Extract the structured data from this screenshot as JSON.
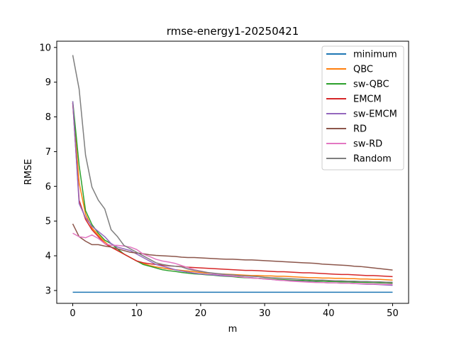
{
  "chart_data": {
    "type": "line",
    "title": "rmse-energy1-20250421",
    "xlabel": "m",
    "ylabel": "RMSE",
    "xlim": [
      -2.5,
      52.5
    ],
    "ylim": [
      2.63,
      10.18
    ],
    "xticks": [
      0,
      10,
      20,
      30,
      40,
      50
    ],
    "yticks": [
      3,
      4,
      5,
      6,
      7,
      8,
      9,
      10
    ],
    "grid": false,
    "legend_position": "top-right",
    "x": [
      0,
      1,
      2,
      3,
      4,
      5,
      6,
      7,
      8,
      9,
      10,
      11,
      12,
      13,
      14,
      15,
      16,
      17,
      18,
      19,
      20,
      21,
      22,
      23,
      24,
      25,
      26,
      27,
      28,
      29,
      30,
      31,
      32,
      33,
      34,
      35,
      36,
      37,
      38,
      39,
      40,
      41,
      42,
      43,
      44,
      45,
      46,
      47,
      48,
      49,
      50
    ],
    "series": [
      {
        "name": "minimum",
        "color": "#1f77b4",
        "values": [
          2.95,
          2.95,
          2.95,
          2.95,
          2.95,
          2.95,
          2.95,
          2.95,
          2.95,
          2.95,
          2.95,
          2.95,
          2.95,
          2.95,
          2.95,
          2.95,
          2.95,
          2.95,
          2.95,
          2.95,
          2.95,
          2.95,
          2.95,
          2.95,
          2.95,
          2.95,
          2.95,
          2.95,
          2.95,
          2.95,
          2.95,
          2.95,
          2.95,
          2.95,
          2.95,
          2.95,
          2.95,
          2.95,
          2.95,
          2.95,
          2.95,
          2.95,
          2.95,
          2.95,
          2.95,
          2.95,
          2.95,
          2.95,
          2.95,
          2.95,
          2.95
        ]
      },
      {
        "name": "QBC",
        "color": "#ff7f0e",
        "values": [
          8.4,
          6.1,
          5.2,
          4.8,
          4.6,
          4.4,
          4.25,
          4.15,
          4.05,
          3.95,
          3.85,
          3.78,
          3.72,
          3.68,
          3.65,
          3.62,
          3.6,
          3.58,
          3.56,
          3.54,
          3.52,
          3.5,
          3.49,
          3.48,
          3.47,
          3.46,
          3.45,
          3.44,
          3.43,
          3.43,
          3.42,
          3.42,
          3.41,
          3.41,
          3.4,
          3.39,
          3.38,
          3.37,
          3.37,
          3.36,
          3.36,
          3.35,
          3.35,
          3.34,
          3.34,
          3.33,
          3.33,
          3.32,
          3.32,
          3.31,
          3.3
        ]
      },
      {
        "name": "sw-QBC",
        "color": "#2ca02c",
        "values": [
          8.45,
          6.6,
          5.3,
          4.9,
          4.65,
          4.45,
          4.35,
          4.2,
          4.05,
          3.95,
          3.85,
          3.75,
          3.7,
          3.65,
          3.6,
          3.57,
          3.55,
          3.52,
          3.5,
          3.48,
          3.47,
          3.45,
          3.44,
          3.42,
          3.41,
          3.4,
          3.38,
          3.37,
          3.36,
          3.35,
          3.34,
          3.33,
          3.32,
          3.31,
          3.3,
          3.29,
          3.29,
          3.28,
          3.27,
          3.27,
          3.26,
          3.26,
          3.25,
          3.25,
          3.24,
          3.24,
          3.23,
          3.23,
          3.22,
          3.22,
          3.21
        ]
      },
      {
        "name": "EMCM",
        "color": "#d62728",
        "values": [
          8.4,
          5.6,
          5.05,
          4.75,
          4.55,
          4.35,
          4.25,
          4.15,
          4.05,
          3.95,
          3.85,
          3.8,
          3.77,
          3.75,
          3.73,
          3.71,
          3.7,
          3.69,
          3.67,
          3.66,
          3.65,
          3.64,
          3.63,
          3.62,
          3.61,
          3.6,
          3.59,
          3.58,
          3.58,
          3.57,
          3.56,
          3.55,
          3.54,
          3.54,
          3.53,
          3.52,
          3.51,
          3.51,
          3.5,
          3.49,
          3.48,
          3.47,
          3.46,
          3.46,
          3.45,
          3.44,
          3.43,
          3.43,
          3.42,
          3.41,
          3.4
        ]
      },
      {
        "name": "sw-EMCM",
        "color": "#9467bd",
        "values": [
          8.45,
          5.5,
          5.1,
          4.85,
          4.7,
          4.55,
          4.35,
          4.25,
          4.2,
          4.15,
          4.05,
          3.95,
          3.85,
          3.75,
          3.7,
          3.65,
          3.6,
          3.56,
          3.53,
          3.5,
          3.48,
          3.46,
          3.45,
          3.43,
          3.42,
          3.41,
          3.4,
          3.38,
          3.37,
          3.35,
          3.33,
          3.32,
          3.3,
          3.29,
          3.28,
          3.27,
          3.26,
          3.25,
          3.24,
          3.23,
          3.22,
          3.22,
          3.21,
          3.21,
          3.2,
          3.19,
          3.18,
          3.18,
          3.17,
          3.16,
          3.15
        ]
      },
      {
        "name": "RD",
        "color": "#8c564b",
        "values": [
          4.92,
          4.55,
          4.42,
          4.32,
          4.32,
          4.28,
          4.25,
          4.2,
          4.15,
          4.1,
          4.08,
          4.06,
          4.03,
          4.01,
          4.0,
          3.99,
          3.98,
          3.96,
          3.95,
          3.95,
          3.94,
          3.93,
          3.92,
          3.91,
          3.9,
          3.9,
          3.89,
          3.88,
          3.88,
          3.87,
          3.86,
          3.85,
          3.84,
          3.83,
          3.82,
          3.81,
          3.8,
          3.79,
          3.78,
          3.76,
          3.75,
          3.74,
          3.73,
          3.72,
          3.7,
          3.69,
          3.67,
          3.65,
          3.63,
          3.61,
          3.59
        ]
      },
      {
        "name": "sw-RD",
        "color": "#e377c2",
        "values": [
          4.65,
          4.55,
          4.52,
          4.6,
          4.5,
          4.35,
          4.3,
          4.3,
          4.28,
          4.25,
          4.18,
          4.05,
          3.98,
          3.9,
          3.85,
          3.82,
          3.78,
          3.72,
          3.66,
          3.6,
          3.56,
          3.52,
          3.48,
          3.46,
          3.44,
          3.42,
          3.4,
          3.38,
          3.36,
          3.35,
          3.33,
          3.32,
          3.3,
          3.29,
          3.27,
          3.26,
          3.25,
          3.24,
          3.23,
          3.23,
          3.22,
          3.22,
          3.21,
          3.21,
          3.2,
          3.2,
          3.19,
          3.19,
          3.18,
          3.18,
          3.18
        ]
      },
      {
        "name": "Random",
        "color": "#7f7f7f",
        "values": [
          9.78,
          8.8,
          6.9,
          5.98,
          5.6,
          5.35,
          4.75,
          4.55,
          4.3,
          4.2,
          4.1,
          4.0,
          3.9,
          3.8,
          3.75,
          3.72,
          3.7,
          3.68,
          3.62,
          3.58,
          3.55,
          3.52,
          3.5,
          3.48,
          3.46,
          3.45,
          3.43,
          3.42,
          3.41,
          3.4,
          3.38,
          3.37,
          3.36,
          3.35,
          3.34,
          3.33,
          3.32,
          3.31,
          3.3,
          3.3,
          3.29,
          3.28,
          3.28,
          3.27,
          3.27,
          3.26,
          3.26,
          3.25,
          3.25,
          3.24,
          3.24
        ]
      }
    ]
  }
}
